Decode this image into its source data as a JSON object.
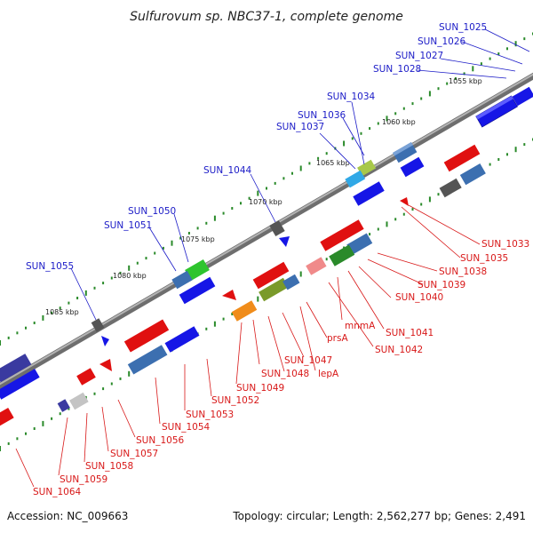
{
  "title": "Sulfurovum sp. NBC37-1, complete genome",
  "footer": {
    "accession": "Accession: NC_009663",
    "stats": "Topology: circular; Length: 2,562,277 bp; Genes: 2,491"
  },
  "colors": {
    "backbone": "#8a8a8a",
    "forward_label": "#1b1bc7",
    "reverse_label": "#d81818",
    "forward_gene": "#1010e0",
    "reverse_gene": "#e01010",
    "scale_tick": "#2a8a2a"
  },
  "scale_labels": [
    "1055 kbp",
    "1060 kbp",
    "1065 kbp",
    "1070 kbp",
    "1075 kbp",
    "1080 kbp",
    "1085 kbp"
  ],
  "forward_labels": [
    "SUN_1025",
    "SUN_1026",
    "SUN_1027",
    "SUN_1028",
    "SUN_1034",
    "SUN_1036",
    "SUN_1037",
    "SUN_1044",
    "SUN_1050",
    "SUN_1051",
    "SUN_1055"
  ],
  "reverse_labels": [
    "SUN_1033",
    "SUN_1035",
    "SUN_1038",
    "SUN_1039",
    "SUN_1040",
    "mnmA",
    "SUN_1041",
    "prsA",
    "SUN_1042",
    "SUN_1047",
    "SUN_1048",
    "lepA",
    "SUN_1049",
    "SUN_1052",
    "SUN_1053",
    "SUN_1054",
    "SUN_1056",
    "SUN_1057",
    "SUN_1058",
    "SUN_1059",
    "SUN_1064"
  ]
}
